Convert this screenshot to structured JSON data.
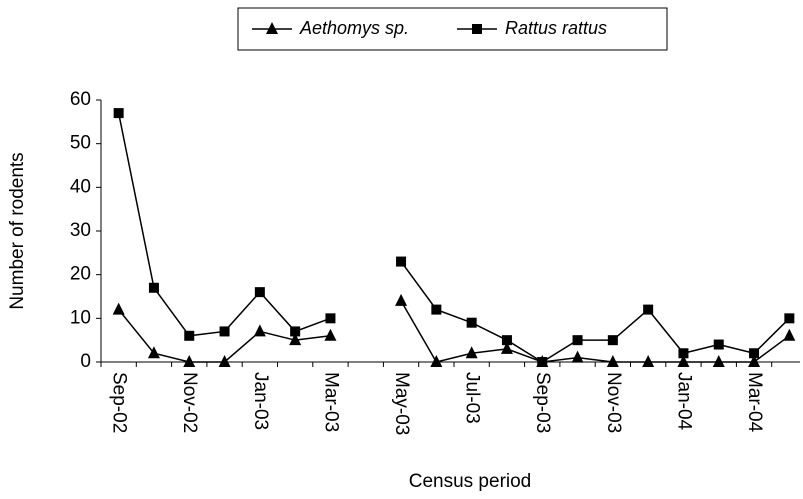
{
  "chart_data": {
    "type": "line",
    "x_label": "Census period",
    "y_label": "Number of rodents",
    "categories": [
      "Sep-02",
      null,
      "Nov-02",
      null,
      "Jan-03",
      null,
      "Mar-03",
      null,
      "May-03",
      null,
      "Jul-03",
      null,
      "Sep-03",
      null,
      "Nov-03",
      null,
      "Jan-04",
      null,
      "Mar-04",
      null
    ],
    "series": [
      {
        "name": "Aethomys sp.",
        "color": "#000000",
        "marker": "triangle",
        "values": [
          12,
          2,
          0,
          0,
          7,
          5,
          6,
          null,
          14,
          0,
          2,
          3,
          0,
          1,
          0,
          0,
          0,
          0,
          0,
          6
        ]
      },
      {
        "name": "Rattus rattus",
        "color": "#000000",
        "marker": "square",
        "values": [
          57,
          17,
          6,
          7,
          16,
          7,
          10,
          null,
          23,
          12,
          9,
          5,
          0,
          5,
          5,
          12,
          2,
          4,
          2,
          10
        ]
      }
    ],
    "ylim": [
      0,
      60
    ],
    "yticks": [
      0,
      10,
      20,
      30,
      40,
      50,
      60
    ],
    "legend": "top"
  }
}
